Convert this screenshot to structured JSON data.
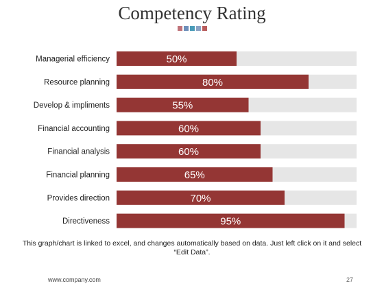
{
  "title": "Competency Rating",
  "swatches": [
    "#c0737a",
    "#6d8fba",
    "#4a9bb8",
    "#8aa2c4",
    "#b85c5c"
  ],
  "note": "This graph/chart is linked to excel, and changes automatically based on data. Just left click on it and select “Edit Data”.",
  "footer": {
    "url": "www.company.com",
    "page": "27"
  },
  "chart_data": {
    "type": "bar",
    "orientation": "horizontal",
    "categories": [
      "Managerial efficiency",
      "Resource planning",
      "Develop & impliments",
      "Financial accounting",
      "Financial analysis",
      "Financial planning",
      "Provides direction",
      "Directiveness"
    ],
    "values": [
      50,
      80,
      55,
      60,
      60,
      65,
      70,
      95
    ],
    "value_labels": [
      "50%",
      "80%",
      "55%",
      "60%",
      "60%",
      "65%",
      "70%",
      "95%"
    ],
    "xlim": [
      0,
      100
    ],
    "bar_color": "#943634",
    "track_color": "#e6e6e6",
    "label_color": "#ffffff"
  }
}
